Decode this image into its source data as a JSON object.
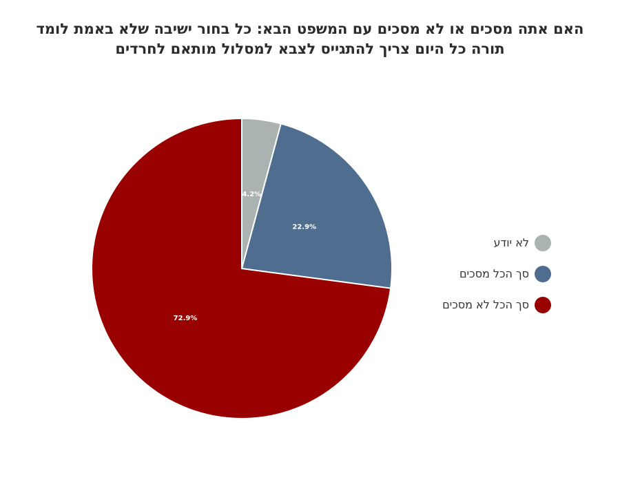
{
  "title_lines": [
    "האם אתה מסכים או לא מסכים עם המשפט הבא: כל בחור ישיבה שלא באמת לומד",
    "תורה כל היום צריך להתגייס לצבא למסלול מותאם לחרדים"
  ],
  "chart_data": {
    "type": "pie",
    "title": "האם אתה מסכים או לא מסכים עם המשפט הבא: כל בחור ישיבה שלא באמת לומד תורה כל היום צריך להתגייס לצבא למסלול מותאם לחרדים",
    "slices": [
      {
        "label": "לא יודע",
        "value": 4.2,
        "display": "4.2%",
        "color": "#aab2b2"
      },
      {
        "label": "סך הכל מסכים",
        "value": 22.9,
        "display": "22.9%",
        "color": "#4f6d8f"
      },
      {
        "label": "סך הכל לא מסכים",
        "value": 72.9,
        "display": "72.9%",
        "color": "#990000"
      }
    ],
    "start_angle_deg": 0,
    "direction": "clockwise",
    "legend_position": "right"
  }
}
